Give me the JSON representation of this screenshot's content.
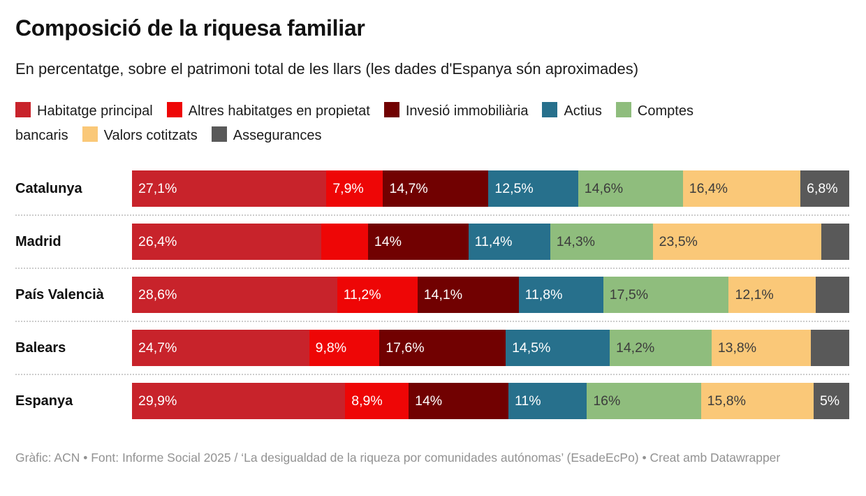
{
  "header": {
    "title": "Composició de la riquesa familiar",
    "subtitle": "En percentatge, sobre el patrimoni total de les llars (les dades d'Espanya són aproximades)"
  },
  "chart_data": {
    "type": "bar",
    "variant": "stacked-horizontal",
    "unit": "%",
    "legend_position": "top",
    "categories": [
      "Catalunya",
      "Madrid",
      "País Valencià",
      "Balears",
      "Espanya"
    ],
    "series": [
      {
        "name": "Habitatge principal",
        "color": "#c8232b",
        "text_color": "#ffffff",
        "values": [
          27.1,
          26.4,
          28.6,
          24.7,
          29.9
        ],
        "labels": [
          "27,1%",
          "26,4%",
          "28,6%",
          "24,7%",
          "29,9%"
        ]
      },
      {
        "name": "Altres habitatges en propietat",
        "color": "#ee0606",
        "text_color": "#ffffff",
        "values": [
          7.9,
          6.5,
          11.2,
          9.8,
          8.9
        ],
        "labels": [
          "7,9%",
          "",
          "11,2%",
          "9,8%",
          "8,9%"
        ]
      },
      {
        "name": "Invesió immobiliària",
        "color": "#710101",
        "text_color": "#ffffff",
        "values": [
          14.7,
          14,
          14.1,
          17.6,
          14
        ],
        "labels": [
          "14,7%",
          "14%",
          "14,1%",
          "17,6%",
          "14%"
        ]
      },
      {
        "name": "Actius",
        "color": "#27708c",
        "text_color": "#ffffff",
        "values": [
          12.5,
          11.4,
          11.8,
          14.5,
          11
        ],
        "labels": [
          "12,5%",
          "11,4%",
          "11,8%",
          "14,5%",
          "11%"
        ]
      },
      {
        "name": "Comptes bancaris",
        "color": "#8fbd7d",
        "text_color": "#3c3c3c",
        "values": [
          14.6,
          14.3,
          17.5,
          14.2,
          16
        ],
        "labels": [
          "14,6%",
          "14,3%",
          "17,5%",
          "14,2%",
          "16%"
        ]
      },
      {
        "name": "Valors cotitzats",
        "color": "#fac878",
        "text_color": "#3c3c3c",
        "values": [
          16.4,
          23.5,
          12.1,
          13.8,
          15.8
        ],
        "labels": [
          "16,4%",
          "23,5%",
          "12,1%",
          "13,8%",
          "15,8%"
        ]
      },
      {
        "name": "Assegurances",
        "color": "#595959",
        "text_color": "#ffffff",
        "values": [
          6.8,
          3.9,
          4.7,
          5.4,
          5
        ],
        "labels": [
          "6,8%",
          "",
          "",
          "",
          "5%"
        ]
      }
    ],
    "separator_color": "#cccccc"
  },
  "footer": {
    "credit": "Gràfic: ACN • Font: Informe Social 2025 / ‘La desigualdad de la riqueza por comunidades autónomas’ (EsadeEcPo) • Creat amb Datawrapper"
  }
}
